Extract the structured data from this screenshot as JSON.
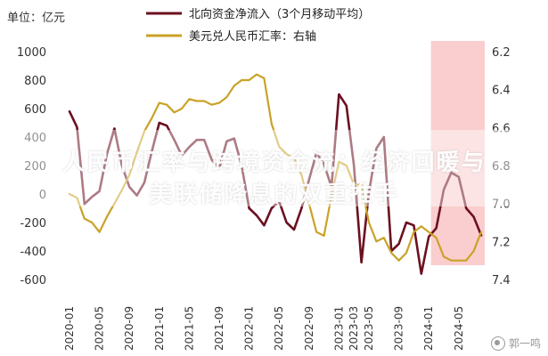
{
  "left_axis_unit": "单位：亿元",
  "overlay": {
    "line1": "人民币汇率与跨境资金流：经济回暖与",
    "line2": "美联储降息的双重推手"
  },
  "watermark": "郭一鸣",
  "chart_data": {
    "type": "line",
    "x": [
      "2020-01",
      "2020-02",
      "2020-03",
      "2020-04",
      "2020-05",
      "2020-06",
      "2020-07",
      "2020-08",
      "2020-09",
      "2020-10",
      "2020-11",
      "2020-12",
      "2021-01",
      "2021-02",
      "2021-03",
      "2021-04",
      "2021-05",
      "2021-06",
      "2021-07",
      "2021-08",
      "2021-09",
      "2021-10",
      "2021-11",
      "2021-12",
      "2022-01",
      "2022-02",
      "2022-03",
      "2022-04",
      "2022-05",
      "2022-06",
      "2022-07",
      "2022-08",
      "2022-09",
      "2022-10",
      "2022-11",
      "2022-12",
      "2023-01",
      "2023-02",
      "2023-03",
      "2023-04",
      "2023-05",
      "2023-06",
      "2023-07",
      "2023-08",
      "2023-09",
      "2023-10",
      "2023-11",
      "2023-12",
      "2024-01",
      "2024-02",
      "2024-03",
      "2024-04",
      "2024-05",
      "2024-06",
      "2024-07",
      "2024-08"
    ],
    "x_tick_labels": [
      "2020-01",
      "2020-05",
      "2020-09",
      "2021-01",
      "2021-05",
      "2021-09",
      "2022-01",
      "2022-05",
      "2022-09",
      "2023-01",
      "2023-03",
      "2023-05",
      "2023-09",
      "2024-01",
      "2024-05"
    ],
    "series": [
      {
        "name": "北向资金净流入（3个月移动平均）",
        "axis": "left",
        "color": "#6b1020",
        "values": [
          580,
          470,
          -70,
          -20,
          20,
          280,
          460,
          200,
          50,
          -10,
          80,
          300,
          500,
          480,
          380,
          270,
          330,
          380,
          380,
          240,
          180,
          370,
          390,
          200,
          -100,
          -150,
          -220,
          -100,
          -50,
          -200,
          -250,
          -100,
          100,
          290,
          210,
          50,
          700,
          620,
          200,
          -480,
          10,
          320,
          400,
          -400,
          -350,
          -200,
          -220,
          -560,
          -300,
          -240,
          30,
          150,
          120,
          -100,
          -160,
          -290
        ]
      },
      {
        "name": "美元兑人民币汇率：右轴",
        "axis": "right",
        "color": "#c9a227",
        "values": [
          6.95,
          6.97,
          7.08,
          7.1,
          7.15,
          7.07,
          7.0,
          6.93,
          6.85,
          6.73,
          6.62,
          6.55,
          6.47,
          6.48,
          6.52,
          6.5,
          6.45,
          6.46,
          6.46,
          6.48,
          6.47,
          6.44,
          6.38,
          6.35,
          6.35,
          6.32,
          6.34,
          6.58,
          6.7,
          6.74,
          6.76,
          6.85,
          7.0,
          7.15,
          7.17,
          6.96,
          6.78,
          6.8,
          6.9,
          6.9,
          7.1,
          7.2,
          7.18,
          7.26,
          7.3,
          7.26,
          7.15,
          7.12,
          7.15,
          7.18,
          7.28,
          7.3,
          7.3,
          7.3,
          7.25,
          7.15
        ]
      }
    ],
    "left_axis": {
      "ylim": [
        -600,
        1000
      ],
      "ticks": [
        "1000",
        "800",
        "600",
        "400",
        "200",
        "0",
        "-200",
        "-400",
        "-600"
      ]
    },
    "right_axis": {
      "ylim": [
        6.2,
        7.4
      ],
      "inverted": true,
      "ticks": [
        "6.2",
        "6.4",
        "6.6",
        "6.8",
        "7.0",
        "7.2",
        "7.4"
      ]
    },
    "highlight_range": [
      "2024-02",
      "2024-08"
    ],
    "highlight_color": "#f5a6a6",
    "legend_placement": "top-center",
    "grid": false
  }
}
